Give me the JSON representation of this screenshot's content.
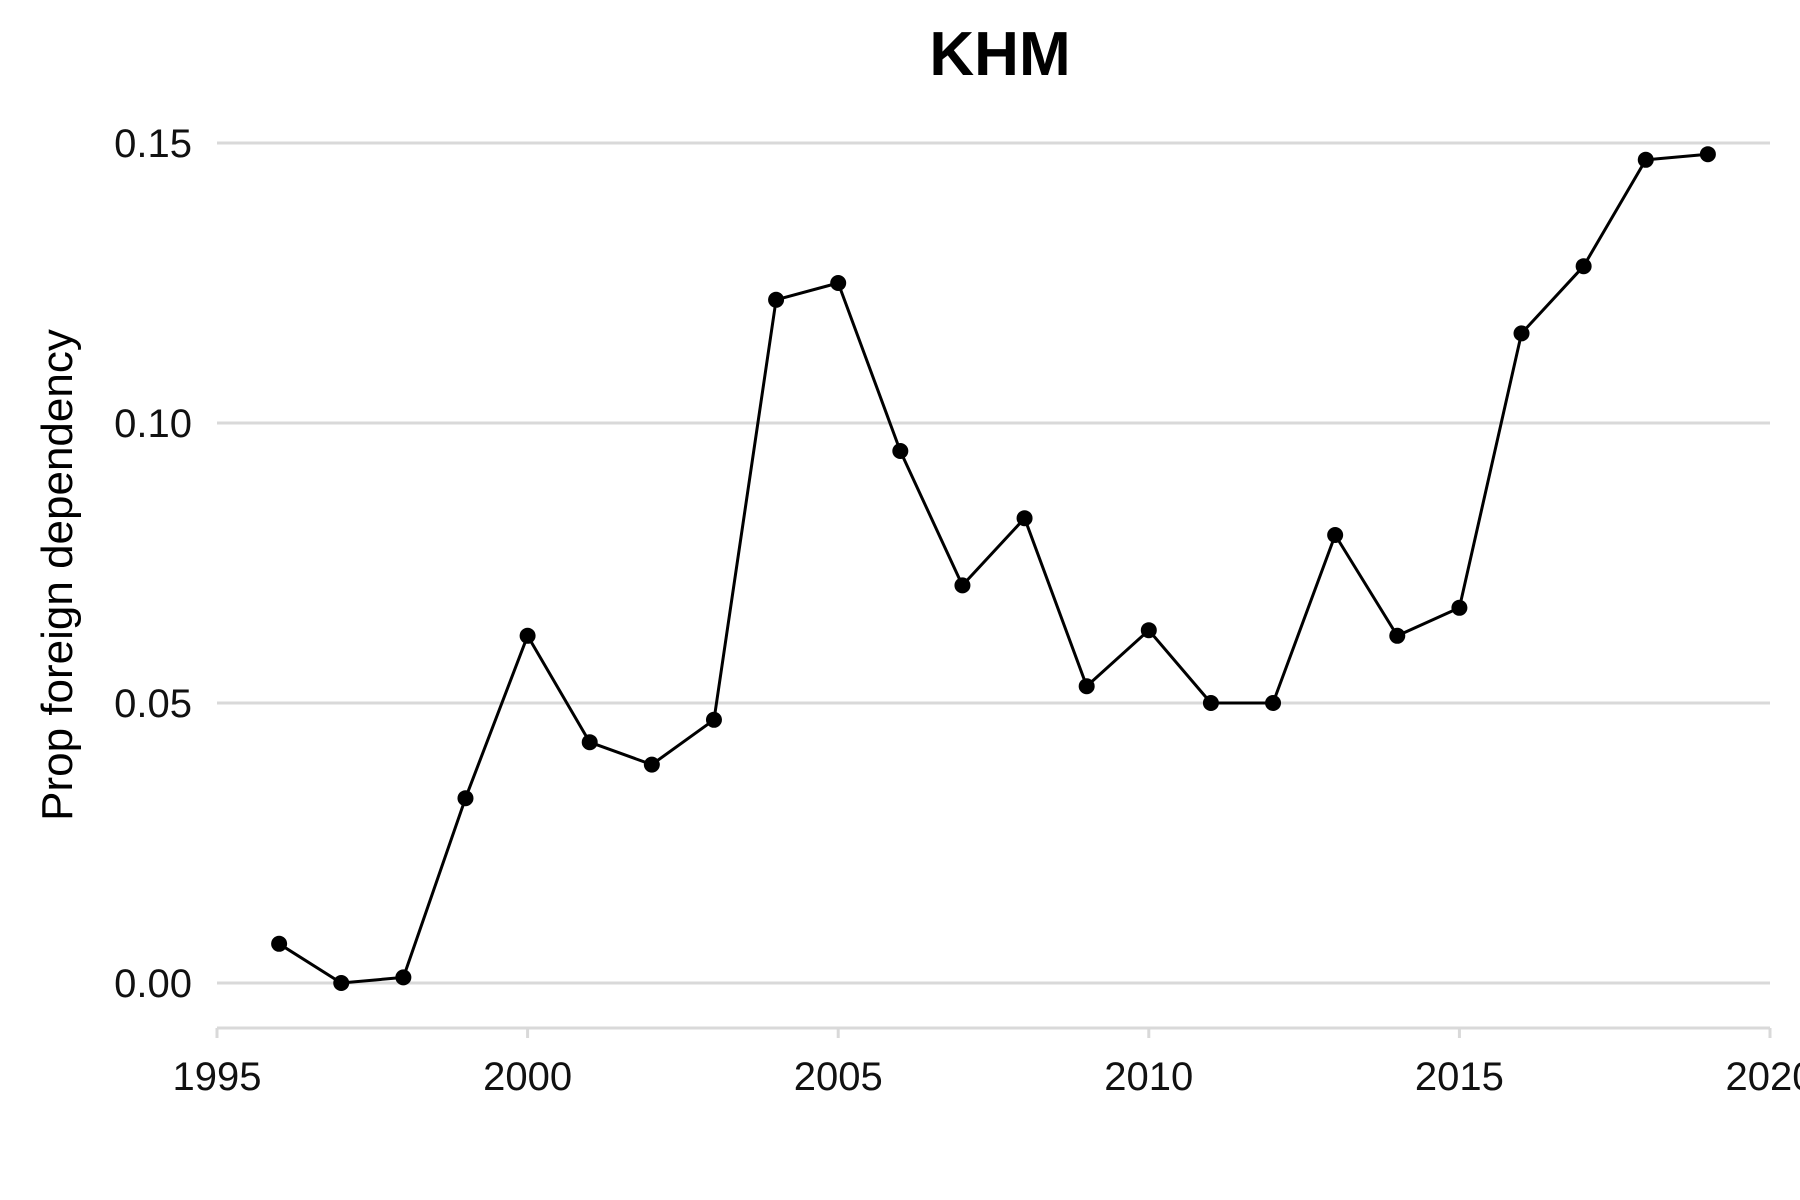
{
  "chart_data": {
    "type": "line",
    "title": "KHM",
    "xlabel": "",
    "ylabel": "Prop foreign dependency",
    "xlim": [
      1995,
      2020
    ],
    "ylim": [
      -0.0075,
      0.155
    ],
    "x_ticks": [
      1995,
      2000,
      2005,
      2010,
      2015,
      2020
    ],
    "x_tick_labels": [
      "1995",
      "2000",
      "2005",
      "2010",
      "2015",
      "2020"
    ],
    "y_ticks": [
      0.0,
      0.05,
      0.1,
      0.15
    ],
    "y_tick_labels": [
      "0.00",
      "0.05",
      "0.10",
      "0.15"
    ],
    "grid": true,
    "legend": "none",
    "series": [
      {
        "name": "KHM",
        "color": "#000000",
        "x": [
          1996,
          1997,
          1998,
          1999,
          2000,
          2001,
          2002,
          2003,
          2004,
          2005,
          2006,
          2007,
          2008,
          2009,
          2010,
          2011,
          2012,
          2013,
          2014,
          2015,
          2016,
          2017,
          2018,
          2019
        ],
        "values": [
          0.007,
          0.0,
          0.001,
          0.033,
          0.062,
          0.043,
          0.039,
          0.047,
          0.122,
          0.125,
          0.095,
          0.071,
          0.083,
          0.053,
          0.063,
          0.05,
          0.05,
          0.08,
          0.062,
          0.067,
          0.116,
          0.128,
          0.147,
          0.148
        ]
      }
    ]
  }
}
